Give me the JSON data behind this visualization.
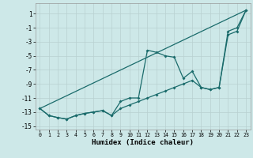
{
  "xlabel": "Humidex (Indice chaleur)",
  "background_color": "#cde8e8",
  "grid_color": "#b8d0d0",
  "line_color": "#1a6b6b",
  "xlim": [
    -0.5,
    23.5
  ],
  "ylim": [
    -15.5,
    2.5
  ],
  "xticks": [
    0,
    1,
    2,
    3,
    4,
    5,
    6,
    7,
    8,
    9,
    10,
    11,
    12,
    13,
    14,
    15,
    16,
    17,
    18,
    19,
    20,
    21,
    22,
    23
  ],
  "yticks": [
    1,
    -1,
    -3,
    -5,
    -7,
    -9,
    -11,
    -13,
    -15
  ],
  "line1_x": [
    0,
    1,
    2,
    3,
    4,
    5,
    6,
    7,
    8,
    9,
    10,
    11,
    12,
    13,
    14,
    15,
    16,
    17,
    18,
    19,
    20,
    21,
    22,
    23
  ],
  "line1_y": [
    -12.5,
    -13.5,
    -13.8,
    -14.0,
    -13.5,
    -13.2,
    -13.0,
    -12.8,
    -13.5,
    -12.5,
    -12.0,
    -11.5,
    -11.0,
    -10.5,
    -10.0,
    -9.5,
    -9.0,
    -8.5,
    -9.5,
    -9.8,
    -9.5,
    -2.0,
    -1.5,
    1.5
  ],
  "line2_x": [
    0,
    1,
    2,
    3,
    4,
    5,
    6,
    7,
    8,
    9,
    10,
    11,
    12,
    13,
    14,
    15,
    16,
    17,
    18,
    19,
    20,
    21,
    22,
    23
  ],
  "line2_y": [
    -12.5,
    -13.5,
    -13.8,
    -14.0,
    -13.5,
    -13.2,
    -13.0,
    -12.8,
    -13.5,
    -11.5,
    -11.0,
    -11.0,
    -4.2,
    -4.5,
    -5.0,
    -5.2,
    -8.2,
    -7.2,
    -9.5,
    -9.8,
    -9.5,
    -1.5,
    -1.0,
    1.5
  ],
  "line3_x": [
    0,
    23
  ],
  "line3_y": [
    -12.5,
    1.5
  ]
}
